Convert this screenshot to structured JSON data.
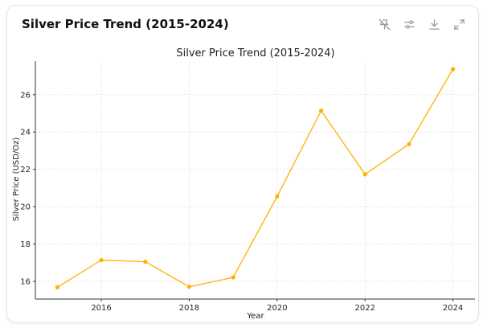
{
  "card": {
    "title": "Silver Price Trend (2015-2024)"
  },
  "toolbar": {
    "icons": [
      "pin-off-icon",
      "sliders-icon",
      "download-icon",
      "expand-icon"
    ]
  },
  "chart_data": {
    "type": "line",
    "title": "Silver Price Trend (2015-2024)",
    "xlabel": "Year",
    "ylabel": "Silver Price (USD/Oz)",
    "x": [
      2015,
      2016,
      2017,
      2018,
      2019,
      2020,
      2021,
      2022,
      2023,
      2024
    ],
    "series": [
      {
        "values": [
          15.68,
          17.14,
          17.05,
          15.71,
          16.21,
          20.55,
          25.14,
          21.73,
          23.35,
          27.37
        ]
      }
    ],
    "xlim": [
      2014.5,
      2024.5
    ],
    "ylim": [
      15.05,
      27.8
    ],
    "xticks": [
      2016,
      2018,
      2020,
      2022,
      2024
    ],
    "yticks": [
      16,
      18,
      20,
      22,
      24,
      26
    ],
    "grid": true,
    "line_color": "#FFB000",
    "grid_color": "#d9d9d9"
  }
}
